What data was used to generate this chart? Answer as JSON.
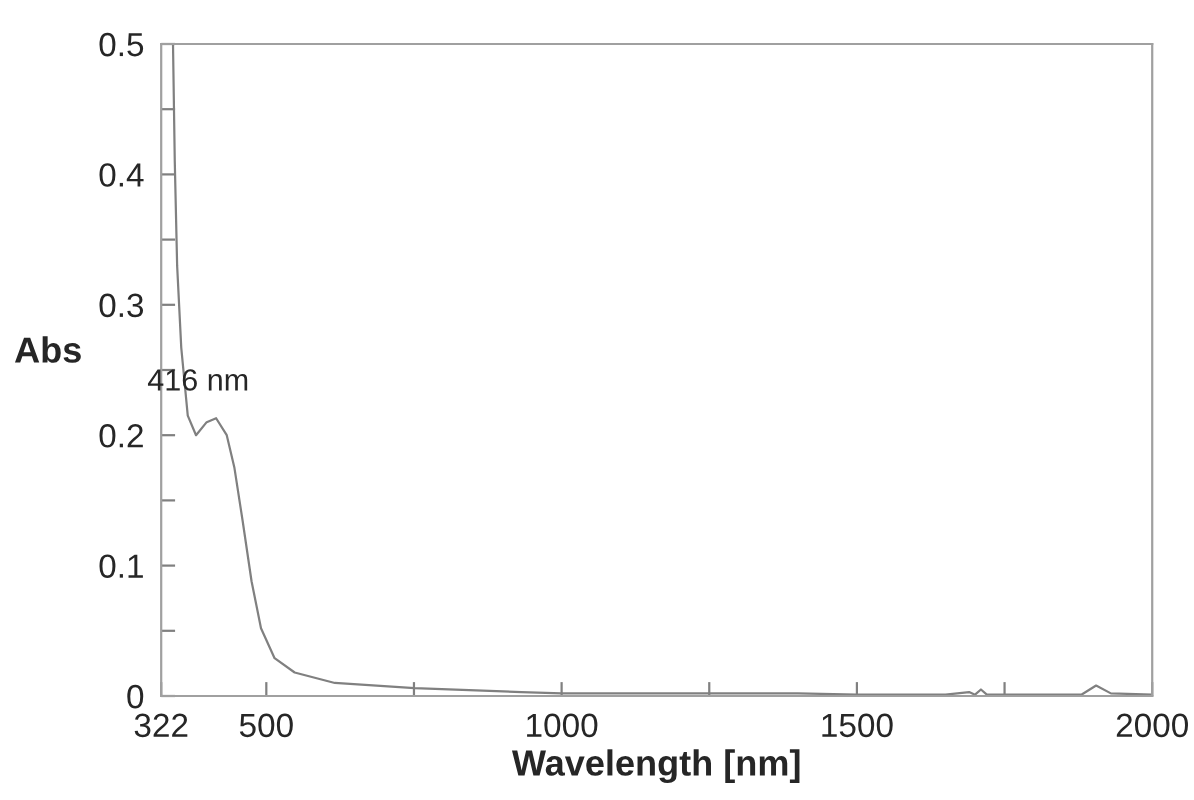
{
  "chart_data": {
    "type": "line",
    "xlabel": "Wavelength [nm]",
    "ylabel": "Abs",
    "x": [
      342,
      345,
      349,
      356,
      367,
      381,
      399,
      415,
      433,
      446,
      460,
      475,
      491,
      514,
      548,
      616,
      751,
      932,
      1000,
      1250,
      1400,
      1500,
      1650,
      1690,
      1700,
      1710,
      1720,
      1740,
      1880,
      1905,
      1930,
      2000
    ],
    "series": [
      {
        "color": "#808080",
        "values": [
          0.5,
          0.41,
          0.33,
          0.267,
          0.215,
          0.2,
          0.21,
          0.213,
          0.2,
          0.175,
          0.134,
          0.088,
          0.052,
          0.029,
          0.018,
          0.01,
          0.006,
          0.003,
          0.002,
          0.002,
          0.002,
          0.001,
          0.001,
          0.003,
          0.001,
          0.005,
          0.001,
          0.001,
          0.001,
          0.008,
          0.002,
          0.001
        ]
      }
    ],
    "annotations": [
      {
        "text": "416 nm",
        "x": 416,
        "y": 0.213
      }
    ],
    "xlim": [
      322,
      2000
    ],
    "xticks": [
      322,
      500,
      {
        "value": 750,
        "label": null
      },
      1000,
      {
        "value": 1250,
        "label": null
      },
      1500,
      {
        "value": 1750,
        "label": null
      },
      2000
    ],
    "ylim": [
      0,
      0.5
    ],
    "yticks": [
      0,
      {
        "value": 0.05,
        "label": null
      },
      0.1,
      {
        "value": 0.15,
        "label": null
      },
      0.2,
      {
        "value": 0.25,
        "label": null
      },
      0.3,
      {
        "value": 0.35,
        "label": null
      },
      0.4,
      {
        "value": 0.45,
        "label": null
      },
      0.5
    ],
    "grid": false,
    "legend": false
  }
}
